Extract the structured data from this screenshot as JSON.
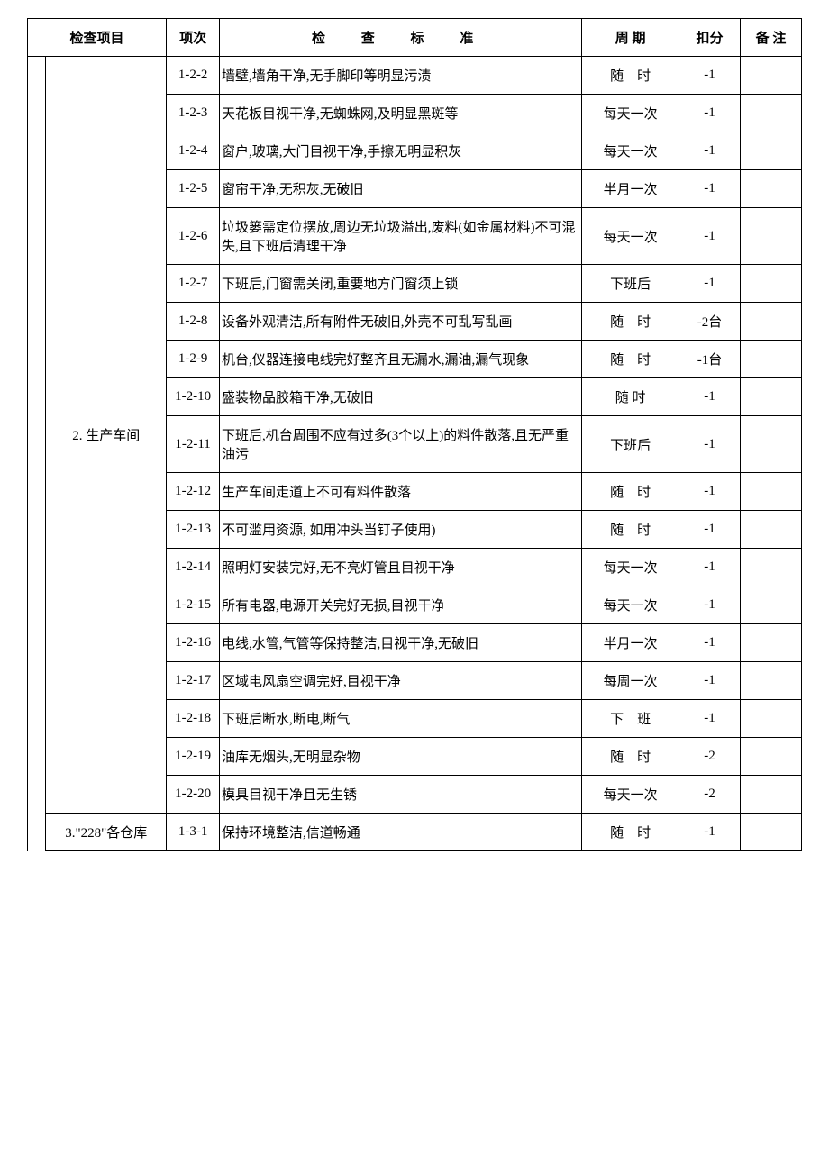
{
  "headers": {
    "category": "检查项目",
    "seq": "项次",
    "standard": "检 查 标 准",
    "cycle": "周 期",
    "deduct": "扣分",
    "remark": "备 注"
  },
  "sections": [
    {
      "category": "2. 生产车间",
      "rows": [
        {
          "seq": "1-2-2",
          "standard": "墙壁,墙角干净,无手脚印等明显污渍",
          "cycle": "随　时",
          "deduct": "-1",
          "remark": ""
        },
        {
          "seq": "1-2-3",
          "standard": "天花板目视干净,无蜘蛛网,及明显黑斑等",
          "cycle": "每天一次",
          "deduct": "-1",
          "remark": ""
        },
        {
          "seq": "1-2-4",
          "standard": "窗户,玻璃,大门目视干净,手擦无明显积灰",
          "cycle": "每天一次",
          "deduct": "-1",
          "remark": ""
        },
        {
          "seq": "1-2-5",
          "standard": "窗帘干净,无积灰,无破旧",
          "cycle": "半月一次",
          "deduct": "-1",
          "remark": ""
        },
        {
          "seq": "1-2-6",
          "standard": "垃圾篓需定位摆放,周边无垃圾溢出,废料(如金属材料)不可混失,且下班后清理干净",
          "cycle": "每天一次",
          "deduct": "-1",
          "remark": ""
        },
        {
          "seq": "1-2-7",
          "standard": "下班后,门窗需关闭,重要地方门窗须上锁",
          "cycle": "下班后",
          "deduct": "-1",
          "remark": ""
        },
        {
          "seq": "1-2-8",
          "standard": "设备外观清洁,所有附件无破旧,外壳不可乱写乱画",
          "cycle": "随　时",
          "deduct": "-2台",
          "remark": ""
        },
        {
          "seq": "1-2-9",
          "standard": "机台,仪器连接电线完好整齐且无漏水,漏油,漏气现象",
          "cycle": "随　时",
          "deduct": "-1台",
          "remark": ""
        },
        {
          "seq": "1-2-10",
          "standard": "盛装物品胶箱干净,无破旧",
          "cycle": "随 时",
          "deduct": "-1",
          "remark": ""
        },
        {
          "seq": "1-2-11",
          "standard": "下班后,机台周围不应有过多(3个以上)的料件散落,且无严重油污",
          "cycle": "下班后",
          "deduct": "-1",
          "remark": ""
        },
        {
          "seq": "1-2-12",
          "standard": "生产车间走道上不可有料件散落",
          "cycle": "随　时",
          "deduct": "-1",
          "remark": ""
        },
        {
          "seq": "1-2-13",
          "standard": "不可滥用资源, 如用冲头当钉子使用)",
          "cycle": "随　时",
          "deduct": "-1",
          "remark": ""
        },
        {
          "seq": "1-2-14",
          "standard": "照明灯安装完好,无不亮灯管且目视干净",
          "cycle": "每天一次",
          "deduct": "-1",
          "remark": ""
        },
        {
          "seq": "1-2-15",
          "standard": "所有电器,电源开关完好无损,目视干净",
          "cycle": "每天一次",
          "deduct": "-1",
          "remark": ""
        },
        {
          "seq": "1-2-16",
          "standard": "  电线,水管,气管等保持整洁,目视干净,无破旧",
          "cycle": "半月一次",
          "deduct": "-1",
          "remark": ""
        },
        {
          "seq": "1-2-17",
          "standard": "区域电风扇空调完好,目视干净",
          "cycle": "每周一次",
          "deduct": "-1",
          "remark": ""
        },
        {
          "seq": "1-2-18",
          "standard": "下班后断水,断电,断气",
          "cycle": "下　班",
          "deduct": "-1",
          "remark": ""
        },
        {
          "seq": "1-2-19",
          "standard": "油库无烟头,无明显杂物",
          "cycle": "随　时",
          "deduct": "-2",
          "remark": ""
        },
        {
          "seq": "1-2-20",
          "standard": "模具目视干净且无生锈",
          "cycle": "每天一次",
          "deduct": "-2",
          "remark": ""
        }
      ]
    },
    {
      "category": "3.\"228\"各仓库",
      "rows": [
        {
          "seq": "1-3-1",
          "standard": "保持环境整洁,信道畅通",
          "cycle": "随　时",
          "deduct": "-1",
          "remark": ""
        }
      ]
    }
  ]
}
